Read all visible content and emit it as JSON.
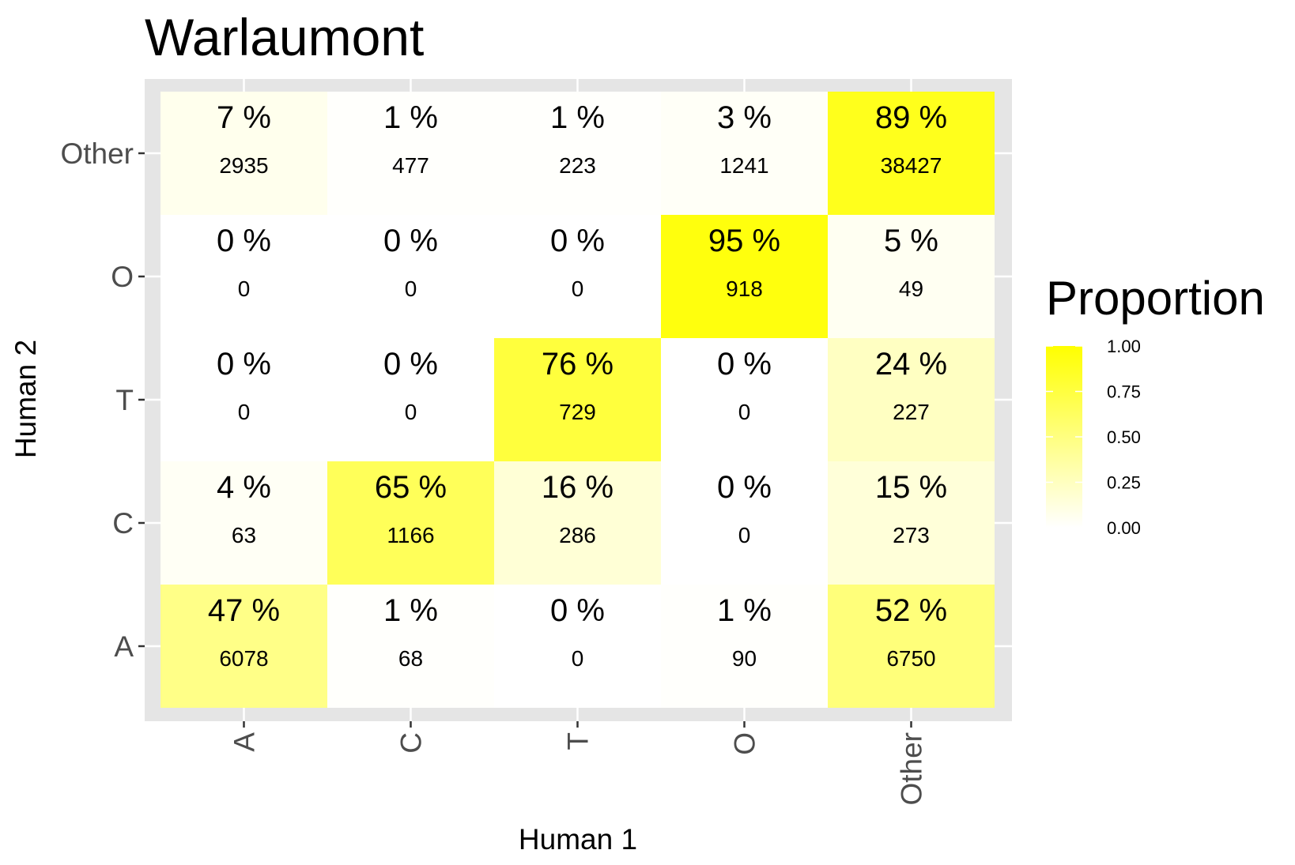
{
  "chart_data": {
    "type": "heatmap",
    "title": "Warlaumont",
    "xlabel": "Human 1",
    "ylabel": "Human 2",
    "x_categories": [
      "A",
      "C",
      "T",
      "O",
      "Other"
    ],
    "y_categories": [
      "A",
      "C",
      "T",
      "O",
      "Other"
    ],
    "percent_unit": "%",
    "cells": [
      {
        "x": "A",
        "y": "Other",
        "proportion": 0.07,
        "count": 2935
      },
      {
        "x": "C",
        "y": "Other",
        "proportion": 0.01,
        "count": 477
      },
      {
        "x": "T",
        "y": "Other",
        "proportion": 0.01,
        "count": 223
      },
      {
        "x": "O",
        "y": "Other",
        "proportion": 0.03,
        "count": 1241
      },
      {
        "x": "Other",
        "y": "Other",
        "proportion": 0.89,
        "count": 38427
      },
      {
        "x": "A",
        "y": "O",
        "proportion": 0.0,
        "count": 0
      },
      {
        "x": "C",
        "y": "O",
        "proportion": 0.0,
        "count": 0
      },
      {
        "x": "T",
        "y": "O",
        "proportion": 0.0,
        "count": 0
      },
      {
        "x": "O",
        "y": "O",
        "proportion": 0.95,
        "count": 918
      },
      {
        "x": "Other",
        "y": "O",
        "proportion": 0.05,
        "count": 49
      },
      {
        "x": "A",
        "y": "T",
        "proportion": 0.0,
        "count": 0
      },
      {
        "x": "C",
        "y": "T",
        "proportion": 0.0,
        "count": 0
      },
      {
        "x": "T",
        "y": "T",
        "proportion": 0.76,
        "count": 729
      },
      {
        "x": "O",
        "y": "T",
        "proportion": 0.0,
        "count": 0
      },
      {
        "x": "Other",
        "y": "T",
        "proportion": 0.24,
        "count": 227
      },
      {
        "x": "A",
        "y": "C",
        "proportion": 0.04,
        "count": 63
      },
      {
        "x": "C",
        "y": "C",
        "proportion": 0.65,
        "count": 1166
      },
      {
        "x": "T",
        "y": "C",
        "proportion": 0.16,
        "count": 286
      },
      {
        "x": "O",
        "y": "C",
        "proportion": 0.0,
        "count": 0
      },
      {
        "x": "Other",
        "y": "C",
        "proportion": 0.15,
        "count": 273
      },
      {
        "x": "A",
        "y": "A",
        "proportion": 0.47,
        "count": 6078
      },
      {
        "x": "C",
        "y": "A",
        "proportion": 0.01,
        "count": 68
      },
      {
        "x": "T",
        "y": "A",
        "proportion": 0.0,
        "count": 0
      },
      {
        "x": "O",
        "y": "A",
        "proportion": 0.01,
        "count": 90
      },
      {
        "x": "Other",
        "y": "A",
        "proportion": 0.52,
        "count": 6750
      }
    ],
    "legend": {
      "title": "Proportion",
      "ticks": [
        "0.00",
        "0.25",
        "0.50",
        "0.75",
        "1.00"
      ],
      "range": [
        0,
        1
      ],
      "color_low": "#ffffff",
      "color_high": "#ffff00",
      "placement": "right"
    },
    "panel_background": "#e5e5e5",
    "grid": true
  }
}
